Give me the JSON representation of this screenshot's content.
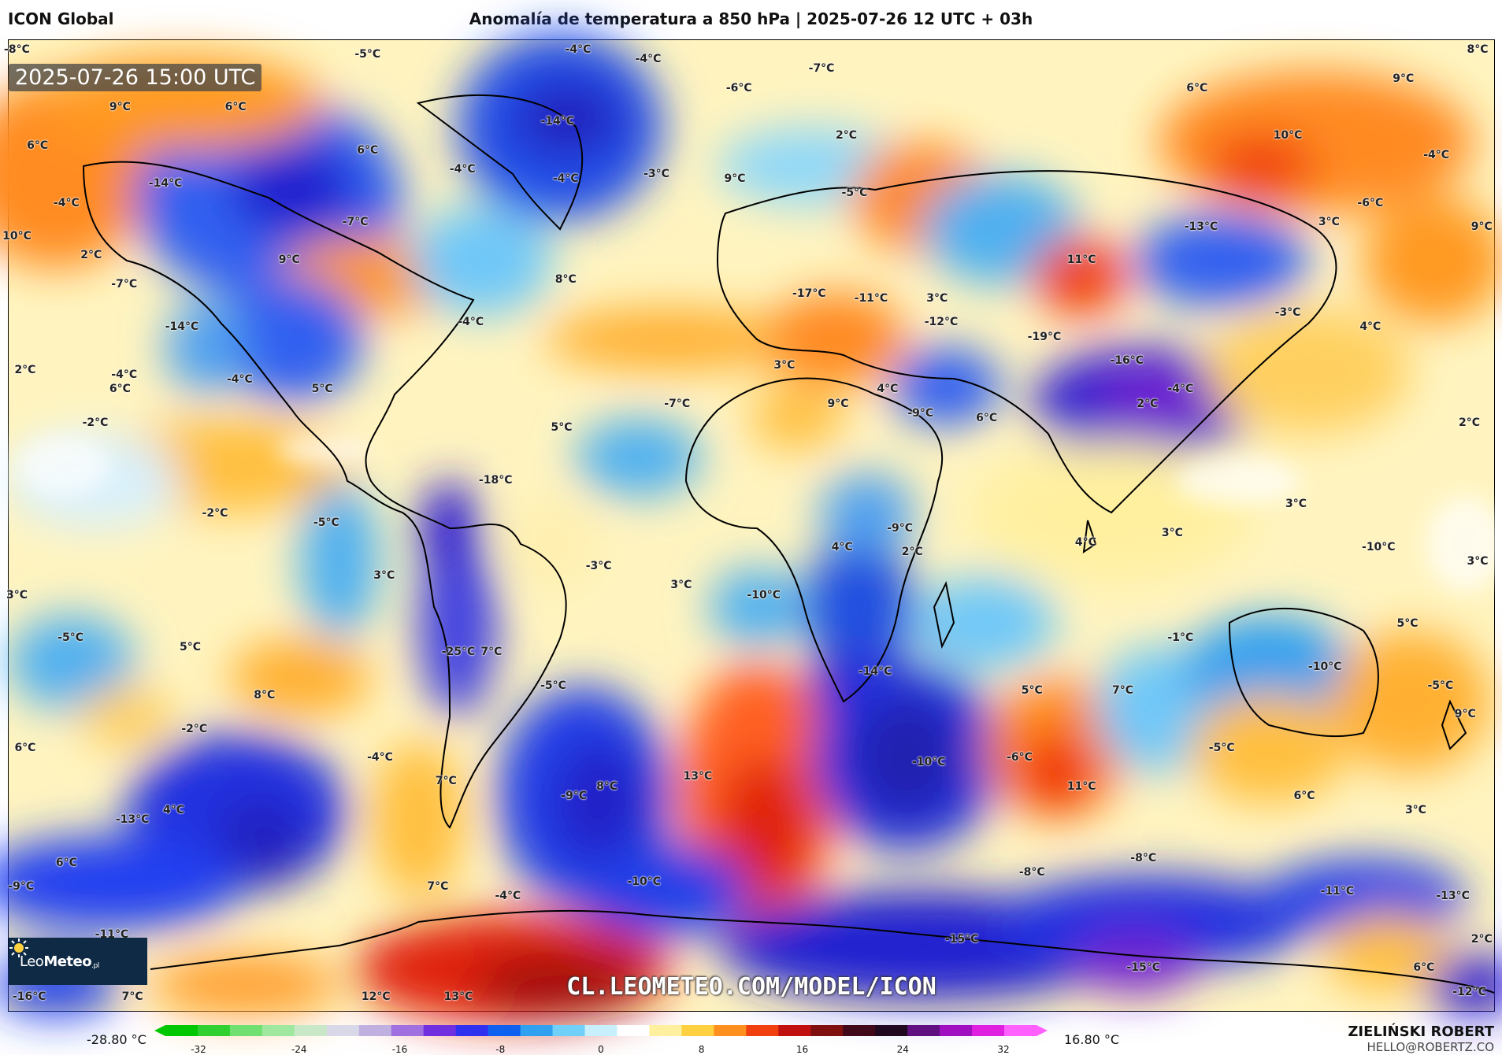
{
  "header": {
    "model": "ICON Global",
    "title": "Anomalía de temperatura a 850 hPa | 2025-07-26 12 UTC + 03h"
  },
  "map": {
    "timestamp": "2025-07-26 15:00 UTC",
    "watermark": "CL.LEOMETEO.COM/MODEL/ICON",
    "logo_text": "LeoMeteo",
    "labels": [
      {
        "text": "-8°C",
        "lon": -178,
        "lat": 88
      },
      {
        "text": "-5°C",
        "lon": -93,
        "lat": 87
      },
      {
        "text": "-4°C",
        "lon": -42,
        "lat": 88
      },
      {
        "text": "-4°C",
        "lon": -25,
        "lat": 86
      },
      {
        "text": "-7°C",
        "lon": 17,
        "lat": 84
      },
      {
        "text": "-6°C",
        "lon": -3,
        "lat": 80
      },
      {
        "text": "6°C",
        "lon": 108,
        "lat": 80
      },
      {
        "text": "8°C",
        "lon": 176,
        "lat": 88
      },
      {
        "text": "9°C",
        "lon": 158,
        "lat": 82
      },
      {
        "text": "9°C",
        "lon": -153,
        "lat": 76
      },
      {
        "text": "6°C",
        "lon": -125,
        "lat": 76
      },
      {
        "text": "-14°C",
        "lon": -47,
        "lat": 73
      },
      {
        "text": "2°C",
        "lon": 23,
        "lat": 70
      },
      {
        "text": "10°C",
        "lon": 130,
        "lat": 70
      },
      {
        "text": "6°C",
        "lon": -173,
        "lat": 68
      },
      {
        "text": "6°C",
        "lon": -93,
        "lat": 67
      },
      {
        "text": "-4°C",
        "lon": -70,
        "lat": 63
      },
      {
        "text": "-4°C",
        "lon": -45,
        "lat": 61
      },
      {
        "text": "-3°C",
        "lon": -23,
        "lat": 62
      },
      {
        "text": "9°C",
        "lon": -4,
        "lat": 61
      },
      {
        "text": "-4°C",
        "lon": 166,
        "lat": 66
      },
      {
        "text": "-14°C",
        "lon": -142,
        "lat": 60
      },
      {
        "text": "-5°C",
        "lon": 25,
        "lat": 58
      },
      {
        "text": "-6°C",
        "lon": 150,
        "lat": 56
      },
      {
        "text": "-4°C",
        "lon": -166,
        "lat": 56
      },
      {
        "text": "-7°C",
        "lon": -96,
        "lat": 52
      },
      {
        "text": "-13°C",
        "lon": 109,
        "lat": 51
      },
      {
        "text": "3°C",
        "lon": 140,
        "lat": 52
      },
      {
        "text": "9°C",
        "lon": 177,
        "lat": 51
      },
      {
        "text": "10°C",
        "lon": -178,
        "lat": 49
      },
      {
        "text": "2°C",
        "lon": -160,
        "lat": 45
      },
      {
        "text": "9°C",
        "lon": -112,
        "lat": 44
      },
      {
        "text": "11°C",
        "lon": 80,
        "lat": 44
      },
      {
        "text": "8°C",
        "lon": -45,
        "lat": 40
      },
      {
        "text": "-7°C",
        "lon": -152,
        "lat": 39
      },
      {
        "text": "-17°C",
        "lon": 14,
        "lat": 37
      },
      {
        "text": "-11°C",
        "lon": 29,
        "lat": 36
      },
      {
        "text": "3°C",
        "lon": 45,
        "lat": 36
      },
      {
        "text": "-3°C",
        "lon": 130,
        "lat": 33
      },
      {
        "text": "-14°C",
        "lon": -138,
        "lat": 30
      },
      {
        "text": "-4°C",
        "lon": -68,
        "lat": 31
      },
      {
        "text": "-12°C",
        "lon": 46,
        "lat": 31
      },
      {
        "text": "-19°C",
        "lon": 71,
        "lat": 28
      },
      {
        "text": "4°C",
        "lon": 150,
        "lat": 30
      },
      {
        "text": "-16°C",
        "lon": 91,
        "lat": 23
      },
      {
        "text": "2°C",
        "lon": -176,
        "lat": 21
      },
      {
        "text": "-4°C",
        "lon": -152,
        "lat": 20
      },
      {
        "text": "6°C",
        "lon": -153,
        "lat": 17
      },
      {
        "text": "3°C",
        "lon": 8,
        "lat": 22
      },
      {
        "text": "-4°C",
        "lon": -124,
        "lat": 19
      },
      {
        "text": "5°C",
        "lon": -104,
        "lat": 17
      },
      {
        "text": "4°C",
        "lon": 33,
        "lat": 17
      },
      {
        "text": "-4°C",
        "lon": 104,
        "lat": 17
      },
      {
        "text": "-2°C",
        "lon": -159,
        "lat": 10
      },
      {
        "text": "-7°C",
        "lon": -18,
        "lat": 14
      },
      {
        "text": "9°C",
        "lon": 21,
        "lat": 14
      },
      {
        "text": "-9°C",
        "lon": 41,
        "lat": 12
      },
      {
        "text": "6°C",
        "lon": 57,
        "lat": 11
      },
      {
        "text": "2°C",
        "lon": 96,
        "lat": 14
      },
      {
        "text": "2°C",
        "lon": 174,
        "lat": 10
      },
      {
        "text": "5°C",
        "lon": -46,
        "lat": 9
      },
      {
        "text": "-18°C",
        "lon": -62,
        "lat": -2
      },
      {
        "text": "-2°C",
        "lon": -130,
        "lat": -9
      },
      {
        "text": "-5°C",
        "lon": -103,
        "lat": -11
      },
      {
        "text": "3°C",
        "lon": 132,
        "lat": -7
      },
      {
        "text": "-9°C",
        "lon": 36,
        "lat": -12
      },
      {
        "text": "3°C",
        "lon": 102,
        "lat": -13
      },
      {
        "text": "4°C",
        "lon": 81,
        "lat": -15
      },
      {
        "text": "4°C",
        "lon": 22,
        "lat": -16
      },
      {
        "text": "2°C",
        "lon": 39,
        "lat": -17
      },
      {
        "text": "-10°C",
        "lon": 152,
        "lat": -16
      },
      {
        "text": "3°C",
        "lon": -89,
        "lat": -22
      },
      {
        "text": "-3°C",
        "lon": -37,
        "lat": -20
      },
      {
        "text": "3°C",
        "lon": -17,
        "lat": -24
      },
      {
        "text": "3°C",
        "lon": 176,
        "lat": -19
      },
      {
        "text": "3°C",
        "lon": -178,
        "lat": -26
      },
      {
        "text": "-10°C",
        "lon": 3,
        "lat": -26
      },
      {
        "text": "5°C",
        "lon": 159,
        "lat": -32
      },
      {
        "text": "-1°C",
        "lon": 104,
        "lat": -35
      },
      {
        "text": "-5°C",
        "lon": -165,
        "lat": -35
      },
      {
        "text": "5°C",
        "lon": -136,
        "lat": -37
      },
      {
        "text": "-25°C",
        "lon": -71,
        "lat": -38
      },
      {
        "text": "7°C",
        "lon": -63,
        "lat": -38
      },
      {
        "text": "-10°C",
        "lon": 139,
        "lat": -41
      },
      {
        "text": "-14°C",
        "lon": 30,
        "lat": -42
      },
      {
        "text": "5°C",
        "lon": 68,
        "lat": -46
      },
      {
        "text": "7°C",
        "lon": 90,
        "lat": -46
      },
      {
        "text": "-5°C",
        "lon": -48,
        "lat": -45
      },
      {
        "text": "8°C",
        "lon": -118,
        "lat": -47
      },
      {
        "text": "-5°C",
        "lon": 167,
        "lat": -45
      },
      {
        "text": "9°C",
        "lon": 173,
        "lat": -51
      },
      {
        "text": "-2°C",
        "lon": -135,
        "lat": -54
      },
      {
        "text": "6°C",
        "lon": -176,
        "lat": -58
      },
      {
        "text": "-4°C",
        "lon": -90,
        "lat": -60
      },
      {
        "text": "-6°C",
        "lon": 65,
        "lat": -60
      },
      {
        "text": "-10°C",
        "lon": 43,
        "lat": -61
      },
      {
        "text": "-5°C",
        "lon": 114,
        "lat": -58
      },
      {
        "text": "7°C",
        "lon": -74,
        "lat": -65
      },
      {
        "text": "13°C",
        "lon": -13,
        "lat": -64
      },
      {
        "text": "8°C",
        "lon": -35,
        "lat": -66
      },
      {
        "text": "11°C",
        "lon": 80,
        "lat": -66
      },
      {
        "text": "-9°C",
        "lon": -43,
        "lat": -68
      },
      {
        "text": "6°C",
        "lon": 134,
        "lat": -68
      },
      {
        "text": "4°C",
        "lon": -140,
        "lat": -71
      },
      {
        "text": "3°C",
        "lon": 161,
        "lat": -71
      },
      {
        "text": "-13°C",
        "lon": -150,
        "lat": -73
      },
      {
        "text": "6°C",
        "lon": -166,
        "lat": -82
      },
      {
        "text": "-9°C",
        "lon": -177,
        "lat": -87
      },
      {
        "text": "7°C",
        "lon": -76,
        "lat": -87
      },
      {
        "text": "-4°C",
        "lon": -59,
        "lat": -89
      },
      {
        "text": "-10°C",
        "lon": -26,
        "lat": -86
      },
      {
        "text": "-8°C",
        "lon": 68,
        "lat": -84
      },
      {
        "text": "-8°C",
        "lon": 95,
        "lat": -81
      },
      {
        "text": "-11°C",
        "lon": 142,
        "lat": -88
      },
      {
        "text": "-13°C",
        "lon": 170,
        "lat": -89
      },
      {
        "text": "-11°C",
        "lon": -155,
        "lat": -97
      },
      {
        "text": "-15°C",
        "lon": 51,
        "lat": -98
      },
      {
        "text": "2°C",
        "lon": 177,
        "lat": -98
      },
      {
        "text": "6°C",
        "lon": 163,
        "lat": -104
      },
      {
        "text": "-15°C",
        "lon": 95,
        "lat": -104
      },
      {
        "text": "-16°C",
        "lon": -175,
        "lat": -110
      },
      {
        "text": "7°C",
        "lon": -150,
        "lat": -110
      },
      {
        "text": "12°C",
        "lon": -91,
        "lat": -110
      },
      {
        "text": "13°C",
        "lon": -71,
        "lat": -110
      },
      {
        "text": "-12°C",
        "lon": 174,
        "lat": -109
      }
    ]
  },
  "colorbar": {
    "min_label": "-28.80 °C",
    "max_label": "16.80 °C",
    "ticks": [
      "-32",
      "-24",
      "-16",
      "-8",
      "0",
      "8",
      "16",
      "24",
      "32"
    ],
    "colors": [
      "#00c800",
      "#30d030",
      "#70e070",
      "#a0e8a0",
      "#c8e8c8",
      "#d8d8e8",
      "#c0b0e0",
      "#a070e0",
      "#7030e0",
      "#3030f0",
      "#1060f0",
      "#30a0f0",
      "#70d0f8",
      "#c8f0fc",
      "#ffffff",
      "#fff0a0",
      "#ffd040",
      "#ff9020",
      "#f04010",
      "#c01010",
      "#801010",
      "#400818",
      "#200820",
      "#601080",
      "#a010c0",
      "#e020e0",
      "#ff60ff"
    ]
  },
  "credits": {
    "author": "ZIELIŃSKI ROBERT",
    "email": "HELLO@ROBERTZ.CO"
  }
}
